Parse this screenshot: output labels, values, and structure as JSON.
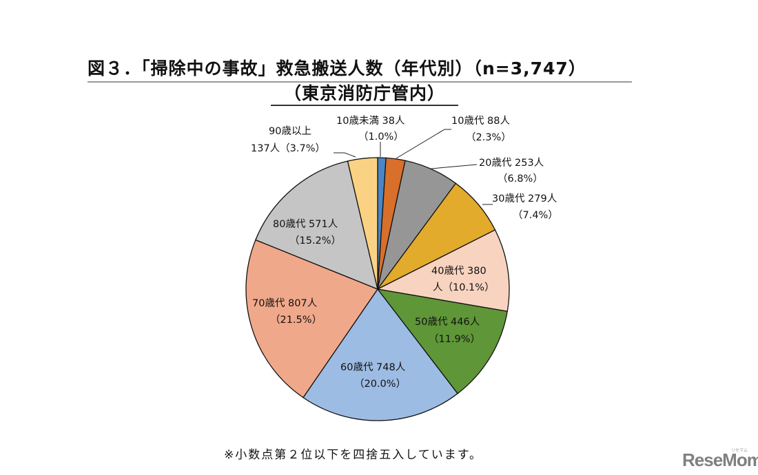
{
  "chart_data": {
    "type": "pie",
    "title": "図３．「掃除中の事故」救急搬送人数（年代別）（n=3,747）",
    "subtitle": "（東京消防庁管内）",
    "total": 3747,
    "unit": "人",
    "start_angle": "12 o'clock, clockwise",
    "categories": [
      "10歳未満",
      "10歳代",
      "20歳代",
      "30歳代",
      "40歳代",
      "50歳代",
      "60歳代",
      "70歳代",
      "80歳代",
      "90歳以上"
    ],
    "values": [
      38,
      88,
      253,
      279,
      380,
      446,
      748,
      807,
      571,
      137
    ],
    "percentages": [
      1.0,
      2.3,
      6.8,
      7.4,
      10.1,
      11.9,
      20.0,
      21.5,
      15.2,
      3.7
    ],
    "colors": [
      "#4a86c5",
      "#d86f2a",
      "#969696",
      "#e2ab2c",
      "#f8d3c0",
      "#5f9637",
      "#9dbce3",
      "#f0a88a",
      "#c5c5c5",
      "#fbd283"
    ],
    "labels": [
      {
        "line1": "10歳未満 38人",
        "line2": "（1.0%）"
      },
      {
        "line1": "10歳代 88人",
        "line2": "（2.3%）"
      },
      {
        "line1": "20歳代 253人",
        "line2": "（6.8%）"
      },
      {
        "line1": "30歳代 279人",
        "line2": "（7.4%）"
      },
      {
        "line1": "40歳代 380",
        "line2": "人（10.1%）"
      },
      {
        "line1": "50歳代 446人",
        "line2": "（11.9%）"
      },
      {
        "line1": "60歳代 748人",
        "line2": "（20.0%）"
      },
      {
        "line1": "70歳代 807人",
        "line2": "（21.5%）"
      },
      {
        "line1": "80歳代 571人",
        "line2": "（15.2%）"
      },
      {
        "line1": "90歳以上",
        "line2": "137人（3.7%）"
      }
    ]
  },
  "footnote": "※小数点第２位以下を四捨五入しています。",
  "watermark": {
    "logo": "ReseMom",
    "ruby": "リセマム"
  }
}
